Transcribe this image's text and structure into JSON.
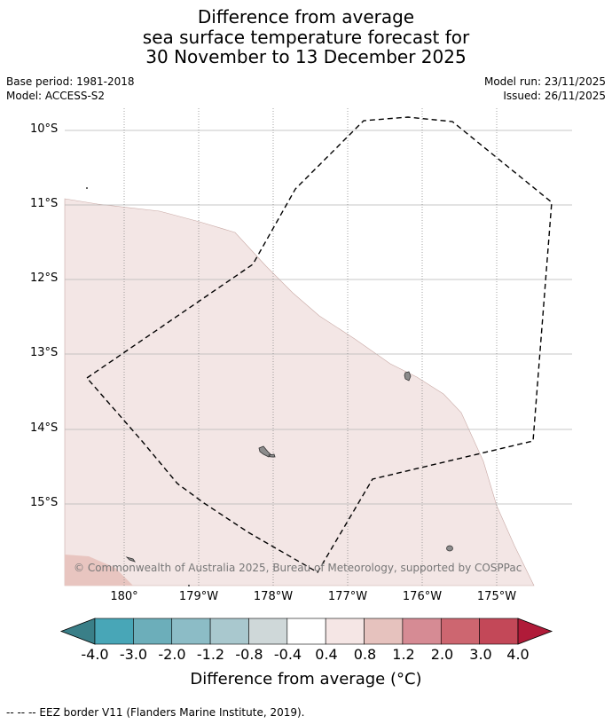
{
  "title": {
    "line1": "Difference from average",
    "line2": "sea surface temperature forecast for",
    "line3": "30 November to 13 December 2025"
  },
  "info": {
    "base_period": "Base period: 1981-2018",
    "model": "Model: ACCESS-S2",
    "model_run": "Model run: 23/11/2025",
    "issued": "Issued: 26/11/2025"
  },
  "map": {
    "lat_labels": [
      "10°S",
      "11°S",
      "12°S",
      "13°S",
      "14°S",
      "15°S"
    ],
    "lon_labels": [
      "180°",
      "179°W",
      "178°W",
      "177°W",
      "176°W",
      "175°W"
    ],
    "copyright": "© Commonwealth of Australia 2025, Bureau of Meteorology, supported by COSPPac",
    "eez_note": "--  --  -- EEZ border V11 (Flanders Marine Institute, 2019).",
    "anomaly_fill_color": "#f3e6e5",
    "anomaly_fill_color_2": "#e8c5c0",
    "land_color": "#8c8c8c"
  },
  "colorbar": {
    "tick_labels": [
      "-4.0",
      "-3.0",
      "-2.0",
      "-1.2",
      "-0.8",
      "-0.4",
      "0.4",
      "0.8",
      "1.2",
      "2.0",
      "3.0",
      "4.0"
    ],
    "colors": [
      "#3a7f88",
      "#48a6b7",
      "#6caeba",
      "#8cbcc6",
      "#a9c8ce",
      "#cfd8d9",
      "#ffffff",
      "#f5e6e5",
      "#e6c2be",
      "#d68b94",
      "#cd6670",
      "#c34858",
      "#b01b39"
    ],
    "label": "Difference from average (°C)"
  }
}
